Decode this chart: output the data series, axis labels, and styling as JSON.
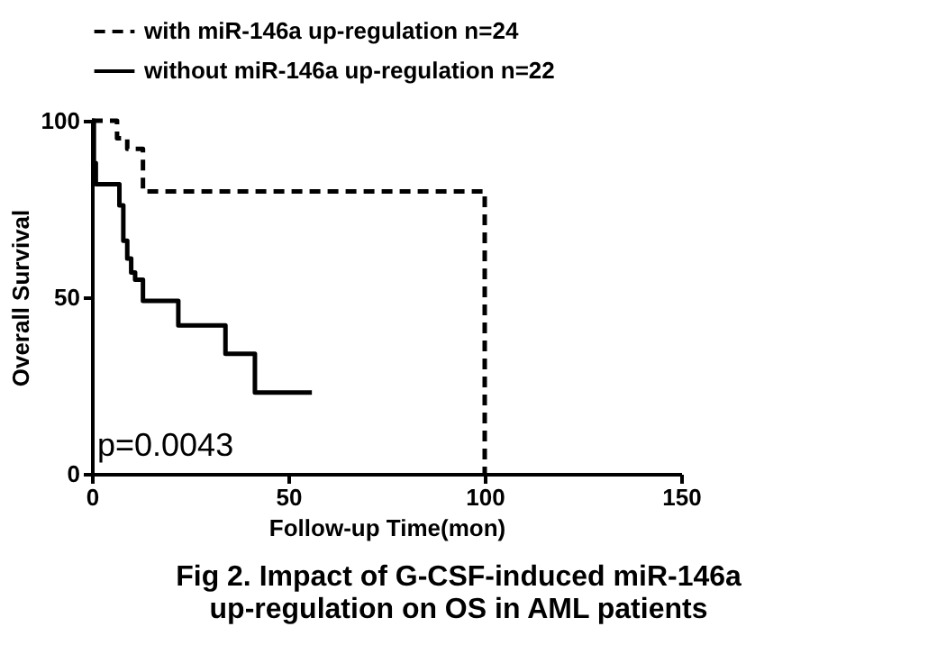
{
  "chart_data": {
    "type": "step",
    "title": "Fig 2. Impact of G-CSF-induced miR-146a up-regulation on OS in AML patients",
    "xlabel": "Follow-up Time(mon)",
    "ylabel": "Overall Survival",
    "series": [
      {
        "name": "with miR-146a up-regulation  n=24",
        "color": "#000000",
        "line_style": "dashed",
        "x": [
          0,
          6.4,
          9,
          13,
          100,
          100
        ],
        "values": [
          100,
          95,
          92,
          80,
          80,
          0
        ]
      },
      {
        "name": "without miR-146a up-regulation  n=22",
        "color": "#000000",
        "line_style": "solid",
        "x": [
          0,
          0.5,
          1,
          7,
          8,
          9,
          10,
          11,
          13,
          22,
          34,
          41.5,
          56
        ],
        "values": [
          100,
          88,
          82,
          76,
          66,
          61,
          57,
          55,
          49,
          42,
          34,
          23,
          23
        ]
      }
    ],
    "xlim": [
      0,
      150
    ],
    "xticks": [
      0,
      50,
      100,
      150
    ],
    "ylim": [
      0,
      100
    ],
    "yticks": [
      0,
      50,
      100
    ],
    "grid": false,
    "legend": "top",
    "marker": "none",
    "annotations": [
      "p=0.0043"
    ]
  }
}
